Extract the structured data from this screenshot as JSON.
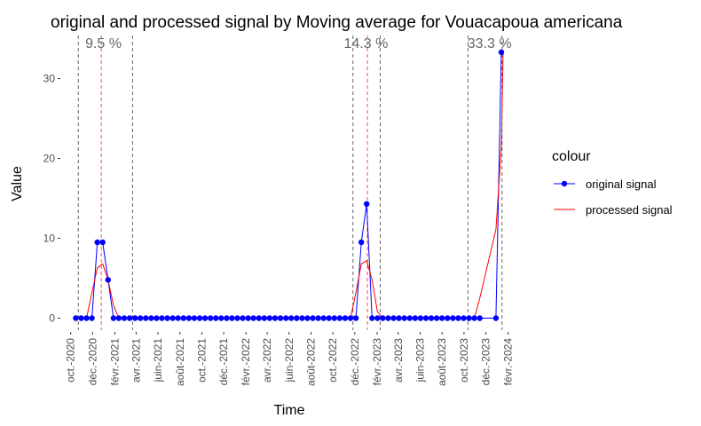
{
  "chart_data": {
    "type": "line",
    "title": "original and processed signal by Moving average for Vouacapoua americana",
    "xlabel": "Time",
    "ylabel": "Value",
    "ylim": [
      -1.5,
      35.4
    ],
    "y_ticks": [
      0,
      10,
      20,
      30
    ],
    "x_range": [
      "2020-09-07",
      "2024-02-24"
    ],
    "x_ticks": [
      {
        "date": "2020-10-01",
        "label": "oct.-2020"
      },
      {
        "date": "2020-12-01",
        "label": "déc.-2020"
      },
      {
        "date": "2021-02-01",
        "label": "févr.-2021"
      },
      {
        "date": "2021-04-01",
        "label": "avr.-2021"
      },
      {
        "date": "2021-06-01",
        "label": "juin-2021"
      },
      {
        "date": "2021-08-01",
        "label": "août-2021"
      },
      {
        "date": "2021-10-01",
        "label": "oct.-2021"
      },
      {
        "date": "2021-12-01",
        "label": "déc.-2021"
      },
      {
        "date": "2022-02-01",
        "label": "févr.-2022"
      },
      {
        "date": "2022-04-01",
        "label": "avr.-2022"
      },
      {
        "date": "2022-06-01",
        "label": "juin-2022"
      },
      {
        "date": "2022-08-01",
        "label": "août-2022"
      },
      {
        "date": "2022-10-01",
        "label": "oct.-2022"
      },
      {
        "date": "2022-12-01",
        "label": "déc.-2022"
      },
      {
        "date": "2023-02-01",
        "label": "févr.-2023"
      },
      {
        "date": "2023-04-01",
        "label": "avr.-2023"
      },
      {
        "date": "2023-06-01",
        "label": "juin-2023"
      },
      {
        "date": "2023-08-01",
        "label": "août-2023"
      },
      {
        "date": "2023-10-01",
        "label": "oct.-2023"
      },
      {
        "date": "2023-12-01",
        "label": "déc.-2023"
      },
      {
        "date": "2024-02-01",
        "label": "févr.-2024"
      }
    ],
    "series": [
      {
        "name": "original signal",
        "color": "#0000ff",
        "points": [
          [
            "2020-10-15",
            0
          ],
          [
            "2020-10-30",
            0
          ],
          [
            "2020-11-14",
            0
          ],
          [
            "2020-11-29",
            0
          ],
          [
            "2020-12-14",
            9.5
          ],
          [
            "2020-12-29",
            9.5
          ],
          [
            "2021-01-13",
            4.8
          ],
          [
            "2021-01-28",
            0
          ],
          [
            "2021-02-12",
            0
          ],
          [
            "2021-02-27",
            0
          ],
          [
            "2021-03-14",
            0
          ],
          [
            "2021-03-29",
            0
          ],
          [
            "2021-04-13",
            0
          ],
          [
            "2021-04-28",
            0
          ],
          [
            "2021-05-13",
            0
          ],
          [
            "2021-05-28",
            0
          ],
          [
            "2021-06-12",
            0
          ],
          [
            "2021-06-27",
            0
          ],
          [
            "2021-07-12",
            0
          ],
          [
            "2021-07-27",
            0
          ],
          [
            "2021-08-11",
            0
          ],
          [
            "2021-08-26",
            0
          ],
          [
            "2021-09-10",
            0
          ],
          [
            "2021-09-25",
            0
          ],
          [
            "2021-10-10",
            0
          ],
          [
            "2021-10-25",
            0
          ],
          [
            "2021-11-09",
            0
          ],
          [
            "2021-11-24",
            0
          ],
          [
            "2021-12-09",
            0
          ],
          [
            "2021-12-24",
            0
          ],
          [
            "2022-01-08",
            0
          ],
          [
            "2022-01-23",
            0
          ],
          [
            "2022-02-07",
            0
          ],
          [
            "2022-02-22",
            0
          ],
          [
            "2022-03-09",
            0
          ],
          [
            "2022-03-24",
            0
          ],
          [
            "2022-04-08",
            0
          ],
          [
            "2022-04-23",
            0
          ],
          [
            "2022-05-08",
            0
          ],
          [
            "2022-05-23",
            0
          ],
          [
            "2022-06-07",
            0
          ],
          [
            "2022-06-22",
            0
          ],
          [
            "2022-07-07",
            0
          ],
          [
            "2022-07-22",
            0
          ],
          [
            "2022-08-06",
            0
          ],
          [
            "2022-08-21",
            0
          ],
          [
            "2022-09-05",
            0
          ],
          [
            "2022-09-20",
            0
          ],
          [
            "2022-10-05",
            0
          ],
          [
            "2022-10-20",
            0
          ],
          [
            "2022-11-04",
            0
          ],
          [
            "2022-11-19",
            0
          ],
          [
            "2022-12-04",
            0
          ],
          [
            "2022-12-19",
            9.5
          ],
          [
            "2023-01-03",
            14.3
          ],
          [
            "2023-01-18",
            0
          ],
          [
            "2023-02-02",
            0
          ],
          [
            "2023-02-17",
            0
          ],
          [
            "2023-03-04",
            0
          ],
          [
            "2023-03-19",
            0
          ],
          [
            "2023-04-03",
            0
          ],
          [
            "2023-04-18",
            0
          ],
          [
            "2023-05-03",
            0
          ],
          [
            "2023-05-18",
            0
          ],
          [
            "2023-06-02",
            0
          ],
          [
            "2023-06-17",
            0
          ],
          [
            "2023-07-02",
            0
          ],
          [
            "2023-07-17",
            0
          ],
          [
            "2023-08-01",
            0
          ],
          [
            "2023-08-16",
            0
          ],
          [
            "2023-08-31",
            0
          ],
          [
            "2023-09-15",
            0
          ],
          [
            "2023-09-30",
            0
          ],
          [
            "2023-10-15",
            0
          ],
          [
            "2023-10-30",
            0
          ],
          [
            "2023-11-14",
            0
          ],
          [
            "2023-12-29",
            0
          ],
          [
            "2024-01-13",
            33.3
          ]
        ]
      },
      {
        "name": "processed signal",
        "color": "#ff0000",
        "points": [
          [
            "2020-11-14",
            0
          ],
          [
            "2020-11-29",
            3.2
          ],
          [
            "2020-12-14",
            6.3
          ],
          [
            "2020-12-29",
            6.8
          ],
          [
            "2021-01-13",
            4.8
          ],
          [
            "2021-01-28",
            1.6
          ],
          [
            "2021-02-12",
            0
          ],
          [
            "2021-02-27",
            0
          ],
          [
            "2021-06-27",
            0
          ],
          [
            "2021-07-12",
            0
          ],
          [
            "2022-11-04",
            0
          ],
          [
            "2022-11-19",
            0
          ],
          [
            "2022-12-04",
            3.2
          ],
          [
            "2022-12-19",
            6.8
          ],
          [
            "2023-01-03",
            7.2
          ],
          [
            "2023-01-18",
            4.8
          ],
          [
            "2023-02-02",
            0.8
          ],
          [
            "2023-02-17",
            0
          ],
          [
            "2023-10-15",
            0
          ],
          [
            "2023-10-30",
            0
          ],
          [
            "2023-11-14",
            2.5
          ],
          [
            "2023-12-29",
            11.1
          ],
          [
            "2024-01-13",
            21.5
          ],
          [
            "2024-01-18",
            33.3
          ]
        ]
      }
    ],
    "vlines": [
      {
        "date": "2020-10-22",
        "color": "#000000"
      },
      {
        "date": "2020-12-25",
        "color": "#ff0000"
      },
      {
        "date": "2021-03-22",
        "color": "#000000"
      },
      {
        "date": "2022-11-26",
        "color": "#000000"
      },
      {
        "date": "2023-01-05",
        "color": "#ff0000"
      },
      {
        "date": "2023-02-10",
        "color": "#000000"
      },
      {
        "date": "2023-10-12",
        "color": "#000000"
      },
      {
        "date": "2024-01-15",
        "color": "#000000"
      }
    ],
    "annotations": [
      {
        "date": "2020-12-31",
        "y": 34.5,
        "text": "9.5 %"
      },
      {
        "date": "2023-01-01",
        "y": 34.5,
        "text": "14.3 %"
      },
      {
        "date": "2023-12-11",
        "y": 34.5,
        "text": "33.3 %"
      }
    ],
    "grid": false,
    "legend": {
      "title": "colour",
      "position": "right"
    }
  }
}
